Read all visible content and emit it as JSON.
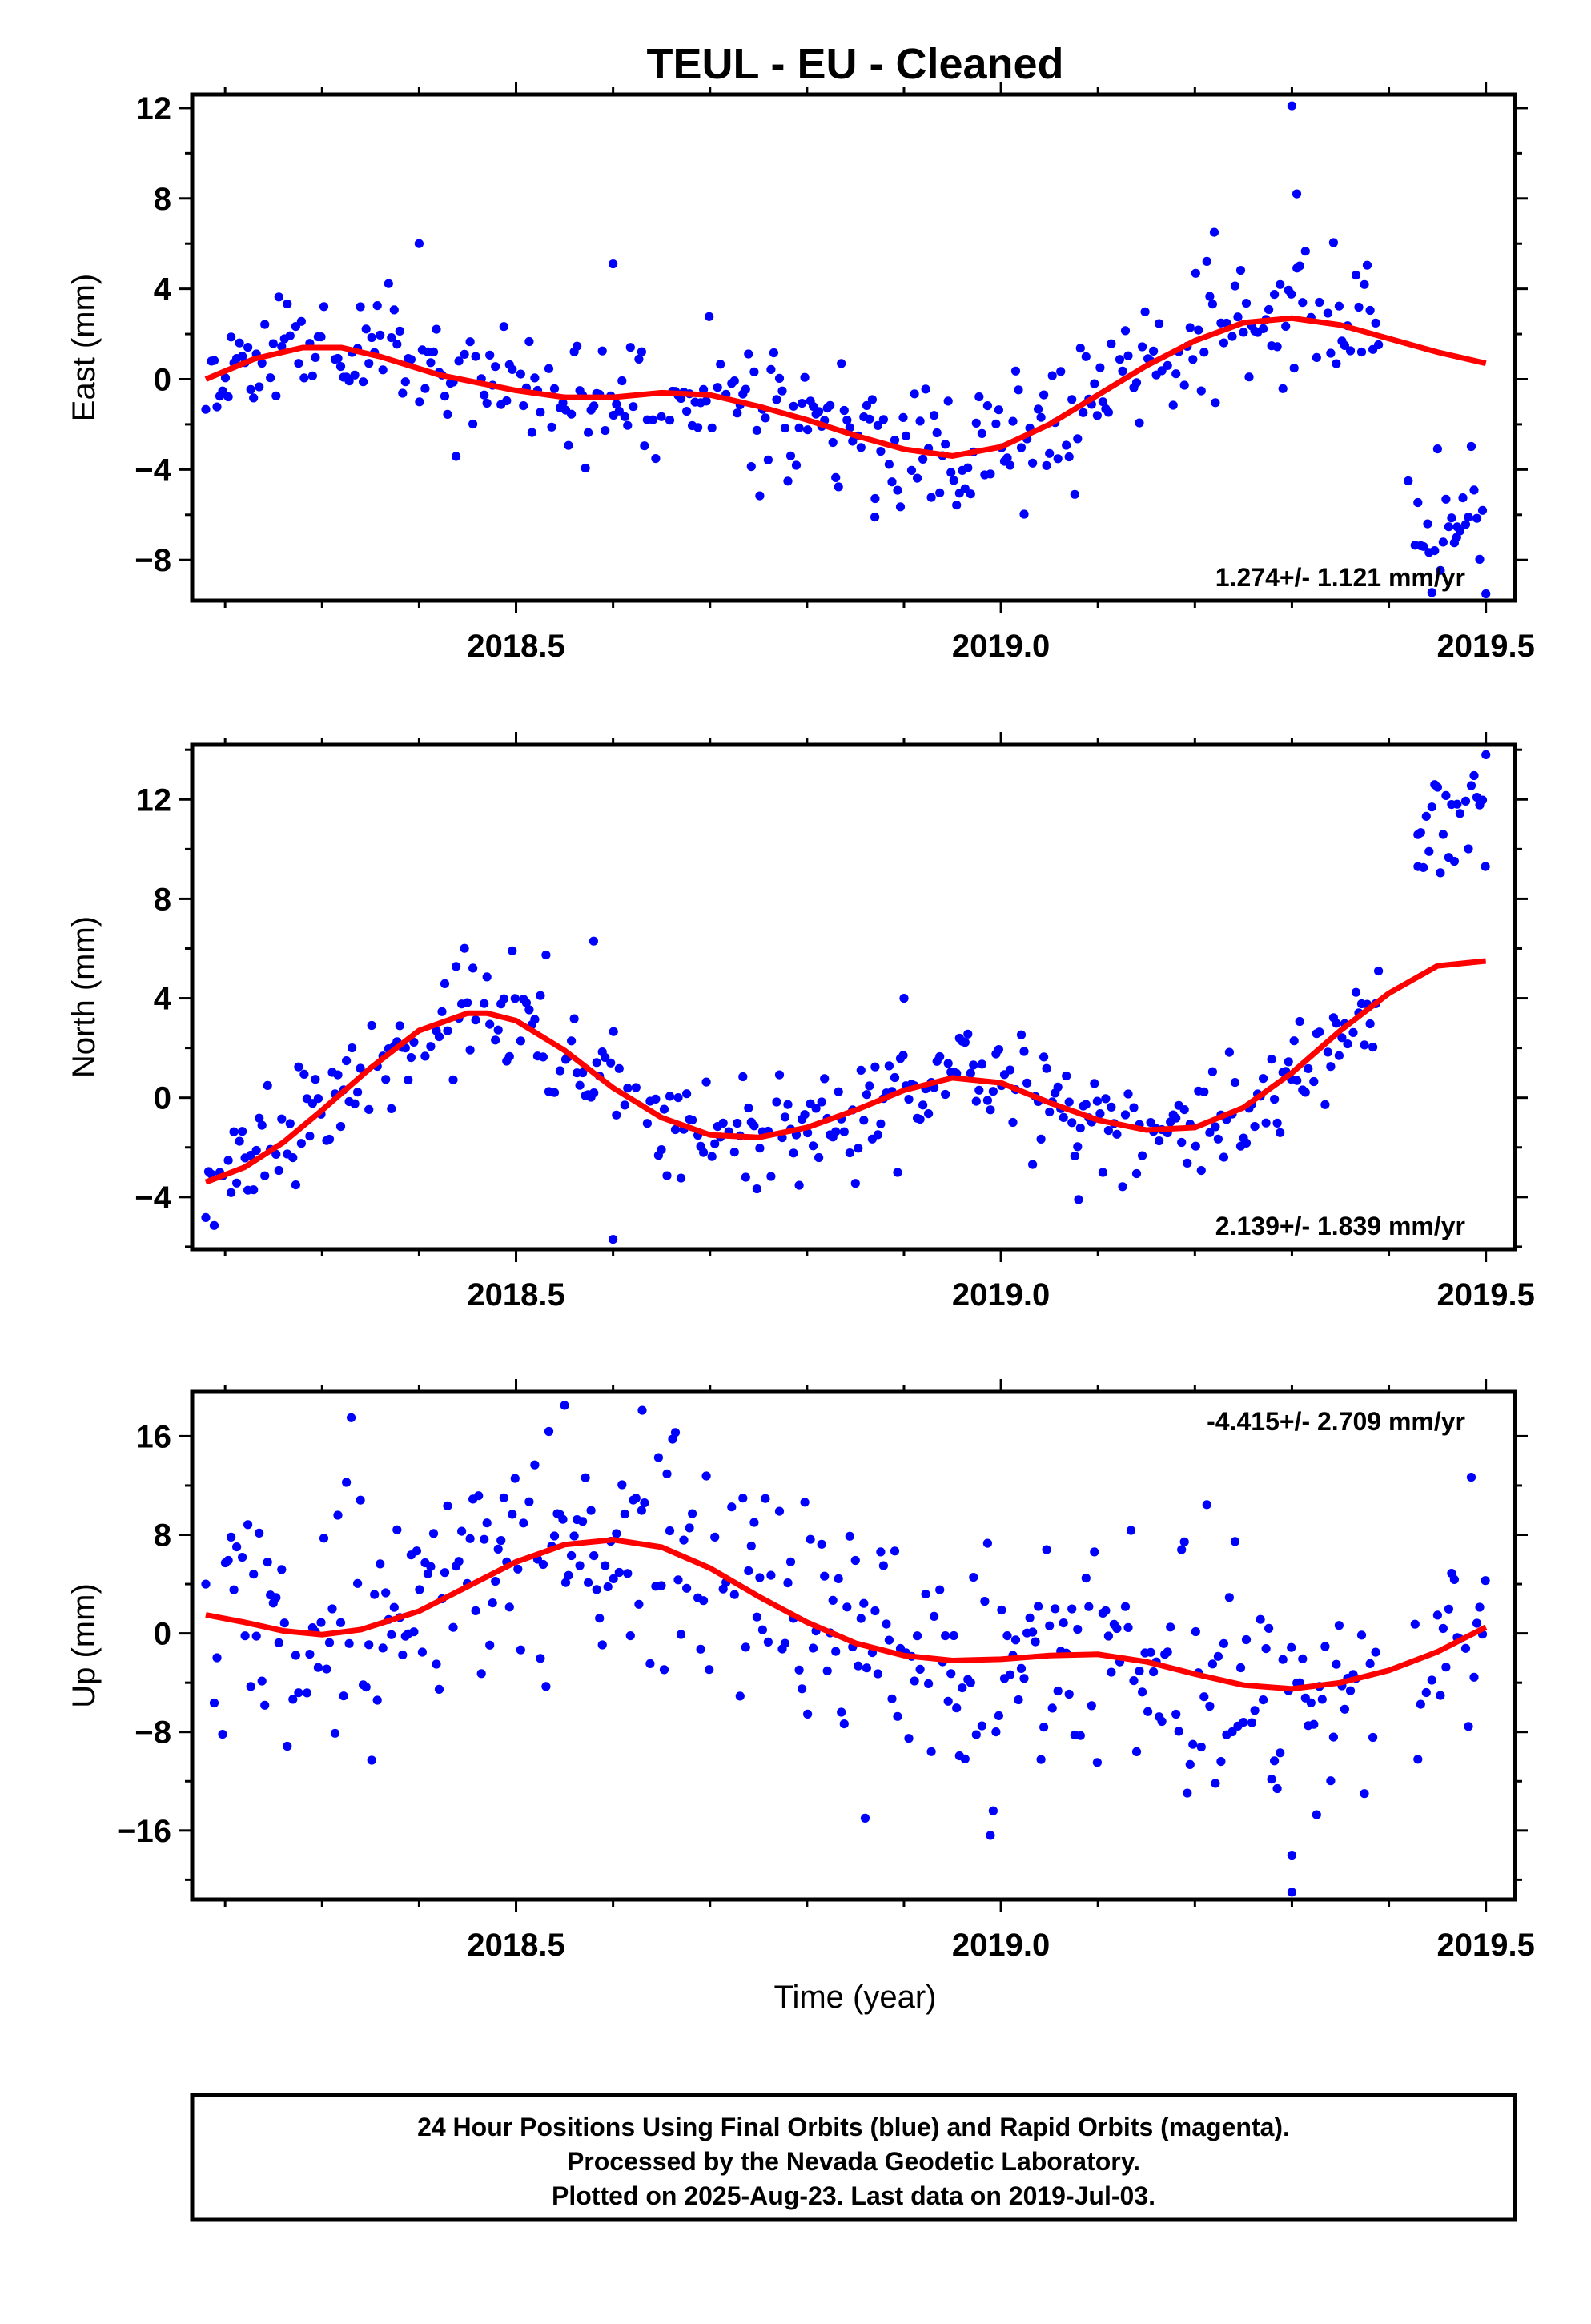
{
  "title": "TEUL  - EU - Cleaned",
  "colors": {
    "final_orbits": "#0000ff",
    "fit_line": "#ff0000",
    "frame": "#000000"
  },
  "x_axis_label": "Time (year)",
  "footer": {
    "line1": "24 Hour Positions Using Final Orbits (blue) and Rapid Orbits (magenta).",
    "line2": "Processed by the Nevada Geodetic Laboratory.",
    "line3": "Plotted on 2025-Aug-23. Last data on 2019-Jul-03."
  },
  "chart_data": [
    {
      "type": "scatter",
      "ylabel": "East (mm)",
      "rate_text": "1.274+/- 1.121 mm/yr",
      "rate_position": "bottom-right",
      "xlim": [
        2018.166,
        2019.53
      ],
      "ylim": [
        -9.8,
        12.6
      ],
      "xticks": [
        "2018.5",
        "2019.0",
        "2019.5"
      ],
      "yticks": [
        "12",
        "8",
        "4",
        "0",
        "-4",
        "-8"
      ],
      "series": [
        {
          "role": "observations",
          "color": "#0000ff",
          "note_points": [
            [
              2019.3,
              12.1
            ],
            [
              2019.305,
              8.2
            ],
            [
              2019.22,
              6.5
            ],
            [
              2018.4,
              6.0
            ],
            [
              2018.6,
              5.1
            ],
            [
              2019.42,
              -4.5
            ],
            [
              2019.44,
              -6.4
            ],
            [
              2019.47,
              -7.0
            ],
            [
              2019.5,
              -9.5
            ],
            [
              2018.87,
              -6.1
            ]
          ]
        },
        {
          "role": "model",
          "color": "#ff0000",
          "x": [
            2018.18,
            2018.23,
            2018.28,
            2018.32,
            2018.36,
            2018.42,
            2018.5,
            2018.55,
            2018.6,
            2018.65,
            2018.7,
            2018.75,
            2018.8,
            2018.85,
            2018.9,
            2018.95,
            2019.0,
            2019.05,
            2019.1,
            2019.15,
            2019.2,
            2019.25,
            2019.3,
            2019.35,
            2019.4,
            2019.45,
            2019.5
          ],
          "y": [
            0.0,
            0.9,
            1.4,
            1.4,
            1.0,
            0.2,
            -0.5,
            -0.8,
            -0.8,
            -0.6,
            -0.7,
            -1.2,
            -1.8,
            -2.5,
            -3.1,
            -3.4,
            -3.0,
            -2.0,
            -0.7,
            0.6,
            1.7,
            2.5,
            2.7,
            2.4,
            1.8,
            1.2,
            0.7
          ]
        }
      ]
    },
    {
      "type": "scatter",
      "ylabel": "North (mm)",
      "rate_text": "2.139+/- 1.839 mm/yr",
      "rate_position": "bottom-right",
      "xlim": [
        2018.166,
        2019.53
      ],
      "ylim": [
        -6.1,
        14.2
      ],
      "xticks": [
        "2018.5",
        "2019.0",
        "2019.5"
      ],
      "yticks": [
        "12",
        "8",
        "4",
        "0",
        "-4"
      ],
      "series": [
        {
          "role": "observations",
          "color": "#0000ff",
          "note_points": [
            [
              2019.5,
              13.8
            ],
            [
              2019.43,
              9.3
            ],
            [
              2018.58,
              6.3
            ],
            [
              2018.6,
              -5.7
            ],
            [
              2019.08,
              -4.1
            ],
            [
              2018.9,
              4.0
            ]
          ]
        },
        {
          "role": "model",
          "color": "#ff0000",
          "x": [
            2018.18,
            2018.22,
            2018.26,
            2018.3,
            2018.35,
            2018.4,
            2018.45,
            2018.47,
            2018.5,
            2018.55,
            2018.6,
            2018.65,
            2018.7,
            2018.75,
            2018.8,
            2018.85,
            2018.9,
            2018.95,
            2019.0,
            2019.05,
            2019.1,
            2019.15,
            2019.2,
            2019.25,
            2019.3,
            2019.35,
            2019.4,
            2019.45,
            2019.5
          ],
          "y": [
            -3.4,
            -2.8,
            -1.8,
            -0.5,
            1.2,
            2.7,
            3.4,
            3.4,
            3.1,
            1.9,
            0.4,
            -0.8,
            -1.5,
            -1.6,
            -1.2,
            -0.5,
            0.3,
            0.8,
            0.6,
            -0.2,
            -0.9,
            -1.3,
            -1.2,
            -0.4,
            1.0,
            2.7,
            4.2,
            5.3,
            5.5
          ]
        }
      ]
    },
    {
      "type": "scatter",
      "ylabel": "Up (mm)",
      "rate_text": "-4.415+/- 2.709 mm/yr",
      "rate_position": "top-right",
      "xlim": [
        2018.166,
        2019.53
      ],
      "ylim": [
        -21.6,
        19.6
      ],
      "xticks": [
        "2018.5",
        "2019.0",
        "2019.5"
      ],
      "yticks": [
        "16",
        "8",
        "0",
        "-8",
        "-16"
      ],
      "series": [
        {
          "role": "observations",
          "color": "#0000ff",
          "note_points": [
            [
              2018.55,
              18.5
            ],
            [
              2018.63,
              18.1
            ],
            [
              2018.33,
              17.5
            ],
            [
              2019.3,
              -21.0
            ],
            [
              2019.3,
              -18.0
            ],
            [
              2018.86,
              -15.0
            ]
          ]
        },
        {
          "role": "model",
          "color": "#ff0000",
          "x": [
            2018.18,
            2018.22,
            2018.26,
            2018.3,
            2018.34,
            2018.4,
            2018.45,
            2018.5,
            2018.55,
            2018.6,
            2018.65,
            2018.7,
            2018.75,
            2018.8,
            2018.85,
            2018.9,
            2018.95,
            2019.0,
            2019.05,
            2019.1,
            2019.15,
            2019.2,
            2019.25,
            2019.3,
            2019.35,
            2019.4,
            2019.45,
            2019.5
          ],
          "y": [
            1.5,
            0.9,
            0.2,
            -0.1,
            0.3,
            1.8,
            3.8,
            5.8,
            7.2,
            7.6,
            7.0,
            5.3,
            3.0,
            0.9,
            -0.8,
            -1.8,
            -2.2,
            -2.1,
            -1.8,
            -1.7,
            -2.3,
            -3.3,
            -4.2,
            -4.5,
            -4.0,
            -3.0,
            -1.5,
            0.5
          ]
        }
      ]
    }
  ]
}
